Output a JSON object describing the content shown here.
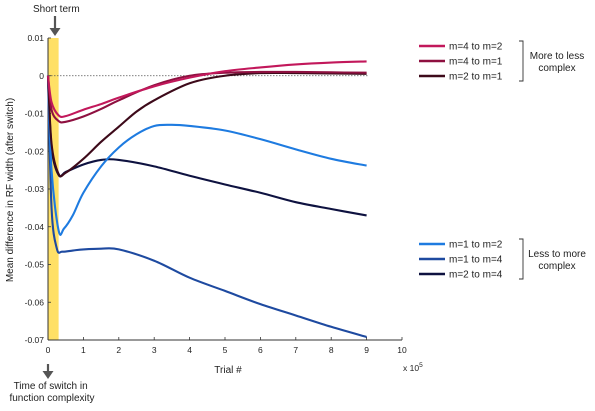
{
  "chart_data": {
    "type": "line",
    "xlabel": "Trial #",
    "ylabel": "Mean difference in RF width (after switch)",
    "x_multiplier": "x 10",
    "x_multiplier_exp": "5",
    "xlim": [
      0,
      10
    ],
    "ylim": [
      -0.07,
      0.01
    ],
    "xticks": [
      "0",
      "1",
      "2",
      "3",
      "4",
      "5",
      "6",
      "7",
      "8",
      "9",
      "10"
    ],
    "yticks": [
      "0.01",
      "0",
      "-0.01",
      "-0.02",
      "-0.03",
      "-0.04",
      "-0.05",
      "-0.06",
      "-0.07"
    ],
    "zero_line": true,
    "highlight_region": {
      "x": [
        0,
        0.3
      ],
      "color": "#ffe066"
    },
    "annotations": {
      "top": "Short term",
      "bottom": "Time of switch in function complexity"
    },
    "groups": [
      {
        "label": "More to less complex",
        "series": [
          "m=4 to m=2",
          "m=4 to m=1",
          "m=2 to m=1"
        ]
      },
      {
        "label": "Less to more complex",
        "series": [
          "m=1 to m=2",
          "m=1 to m=4",
          "m=2 to m=4"
        ]
      }
    ],
    "series": [
      {
        "name": "m=4 to m=2",
        "color": "#c2185b",
        "points": [
          [
            0,
            0
          ],
          [
            0.1,
            -0.007
          ],
          [
            0.3,
            -0.0105
          ],
          [
            0.5,
            -0.0107
          ],
          [
            1,
            -0.009
          ],
          [
            1.5,
            -0.0075
          ],
          [
            2,
            -0.0058
          ],
          [
            3,
            -0.0028
          ],
          [
            4,
            -0.0005
          ],
          [
            5,
            0.0012
          ],
          [
            6,
            0.0022
          ],
          [
            7,
            0.003
          ],
          [
            8,
            0.0035
          ],
          [
            9,
            0.0038
          ]
        ]
      },
      {
        "name": "m=4 to m=1",
        "color": "#8e1040",
        "points": [
          [
            0,
            0
          ],
          [
            0.1,
            -0.009
          ],
          [
            0.3,
            -0.012
          ],
          [
            0.5,
            -0.0122
          ],
          [
            1,
            -0.0108
          ],
          [
            1.5,
            -0.0088
          ],
          [
            2,
            -0.0065
          ],
          [
            3,
            -0.0025
          ],
          [
            4,
            0
          ],
          [
            5,
            0.0008
          ],
          [
            6,
            0.001
          ],
          [
            7,
            0.001
          ],
          [
            8,
            0.0009
          ],
          [
            9,
            0.0008
          ]
        ]
      },
      {
        "name": "m=2 to m=1",
        "color": "#3d0a1a",
        "points": [
          [
            0,
            0
          ],
          [
            0.1,
            -0.018
          ],
          [
            0.3,
            -0.026
          ],
          [
            0.5,
            -0.0257
          ],
          [
            1,
            -0.022
          ],
          [
            1.5,
            -0.0175
          ],
          [
            2,
            -0.0135
          ],
          [
            2.5,
            -0.0095
          ],
          [
            3,
            -0.0065
          ],
          [
            4,
            -0.002
          ],
          [
            5,
            0
          ],
          [
            6,
            0.0007
          ],
          [
            7,
            0.0007
          ],
          [
            8,
            0.0006
          ],
          [
            9,
            0.0005
          ]
        ]
      },
      {
        "name": "m=1 to m=2",
        "color": "#1e7be0",
        "points": [
          [
            0,
            0
          ],
          [
            0.1,
            -0.025
          ],
          [
            0.3,
            -0.041
          ],
          [
            0.45,
            -0.0405
          ],
          [
            0.7,
            -0.037
          ],
          [
            1,
            -0.031
          ],
          [
            1.5,
            -0.024
          ],
          [
            2,
            -0.019
          ],
          [
            2.5,
            -0.0155
          ],
          [
            3,
            -0.0133
          ],
          [
            3.5,
            -0.013
          ],
          [
            4,
            -0.0133
          ],
          [
            5,
            -0.0145
          ],
          [
            6,
            -0.0168
          ],
          [
            7,
            -0.0195
          ],
          [
            8,
            -0.022
          ],
          [
            9,
            -0.0238
          ]
        ]
      },
      {
        "name": "m=1 to m=4",
        "color": "#1e4aa0",
        "points": [
          [
            0,
            0
          ],
          [
            0.1,
            -0.035
          ],
          [
            0.25,
            -0.0458
          ],
          [
            0.4,
            -0.0466
          ],
          [
            0.7,
            -0.0463
          ],
          [
            1,
            -0.046
          ],
          [
            1.5,
            -0.0458
          ],
          [
            2,
            -0.046
          ],
          [
            3,
            -0.049
          ],
          [
            4,
            -0.0535
          ],
          [
            5,
            -0.057
          ],
          [
            6,
            -0.0605
          ],
          [
            7,
            -0.0635
          ],
          [
            8,
            -0.0665
          ],
          [
            9,
            -0.0692
          ]
        ]
      },
      {
        "name": "m=2 to m=4",
        "color": "#0e1240",
        "points": [
          [
            0,
            0
          ],
          [
            0.1,
            -0.019
          ],
          [
            0.3,
            -0.0263
          ],
          [
            0.5,
            -0.0255
          ],
          [
            1,
            -0.0235
          ],
          [
            1.5,
            -0.0223
          ],
          [
            2,
            -0.0223
          ],
          [
            3,
            -0.024
          ],
          [
            4,
            -0.0265
          ],
          [
            5,
            -0.0288
          ],
          [
            6,
            -0.031
          ],
          [
            7,
            -0.0335
          ],
          [
            8,
            -0.0353
          ],
          [
            9,
            -0.037
          ]
        ]
      }
    ]
  }
}
